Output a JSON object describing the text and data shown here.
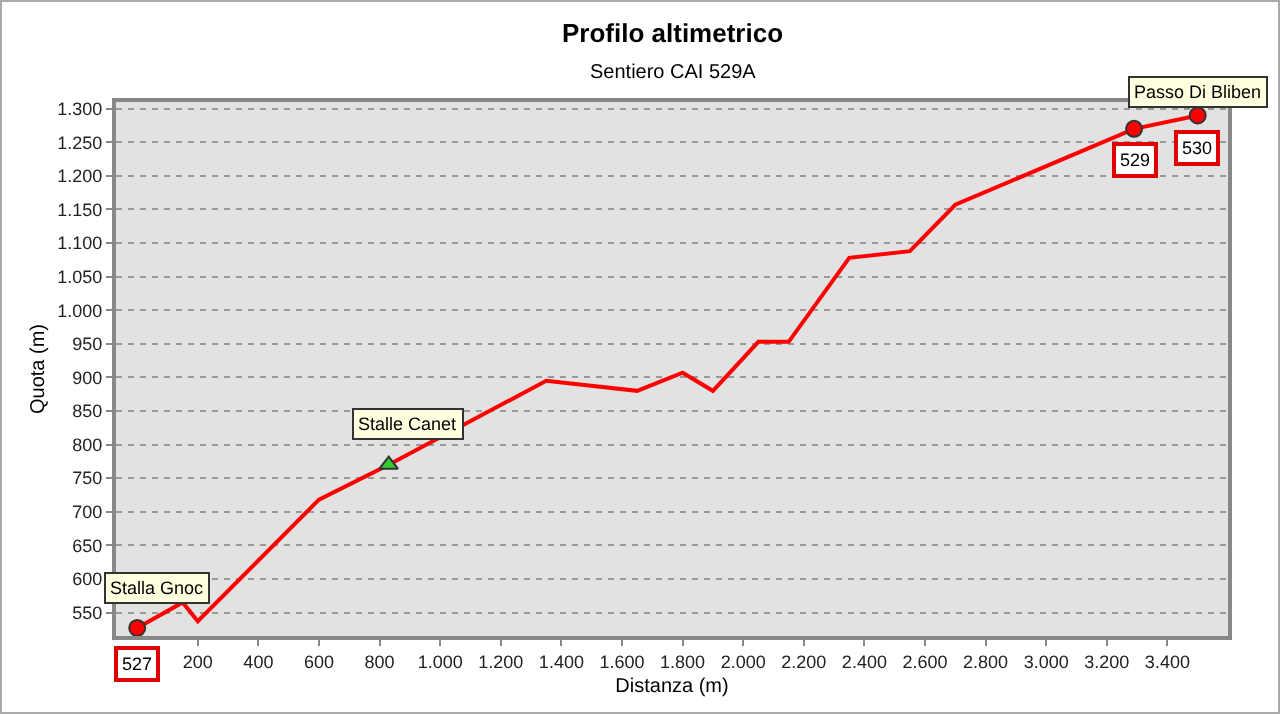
{
  "chart_data": {
    "type": "line",
    "title": "Profilo altimetrico",
    "subtitle": "Sentiero CAI 529A",
    "xlabel": "Distanza (m)",
    "ylabel": "Quota (m)",
    "x": [
      0,
      150,
      200,
      600,
      830,
      1350,
      1650,
      1800,
      1900,
      2050,
      2150,
      2350,
      2550,
      2700,
      3290,
      3500
    ],
    "series": [
      {
        "color": "#ff0000",
        "values": [
          527,
          565,
          537,
          718,
          770,
          895,
          880,
          907,
          880,
          953,
          953,
          1078,
          1088,
          1157,
          1270,
          1290
        ]
      },
      {
        "type": "scatter",
        "color": "#ff0000",
        "marker": "circle",
        "x": [
          0,
          3290,
          3500
        ],
        "values": [
          527,
          1270,
          1290
        ]
      },
      {
        "type": "scatter",
        "color": "#33cc33",
        "marker": "triangle",
        "x": [
          830
        ],
        "values": [
          770
        ]
      }
    ],
    "xlim": [
      -70,
      3600
    ],
    "xticks": [
      200,
      400,
      600,
      800,
      {
        "value": 1000,
        "label": "1.000"
      },
      {
        "value": 1200,
        "label": "1.200"
      },
      {
        "value": 1400,
        "label": "1.400"
      },
      {
        "value": 1600,
        "label": "1.600"
      },
      {
        "value": 1800,
        "label": "1.800"
      },
      {
        "value": 2000,
        "label": "2.000"
      },
      {
        "value": 2200,
        "label": "2.200"
      },
      {
        "value": 2400,
        "label": "2.400"
      },
      {
        "value": 2600,
        "label": "2.600"
      },
      {
        "value": 2800,
        "label": "2.800"
      },
      {
        "value": 3000,
        "label": "3.000"
      },
      {
        "value": 3200,
        "label": "3.200"
      },
      {
        "value": 3400,
        "label": "3.400"
      }
    ],
    "ylim": [
      515,
      1310
    ],
    "yticks": [
      550,
      600,
      650,
      700,
      750,
      800,
      850,
      900,
      950,
      {
        "value": 1000,
        "label": "1.000"
      },
      {
        "value": 1050,
        "label": "1.050"
      },
      {
        "value": 1100,
        "label": "1.100"
      },
      {
        "value": 1150,
        "label": "1.150"
      },
      {
        "value": 1200,
        "label": "1.200"
      },
      {
        "value": 1250,
        "label": "1.250"
      },
      {
        "value": 1300,
        "label": "1.300"
      }
    ],
    "grid": "y",
    "legend": false,
    "line_style": "solid",
    "annotations": [
      {
        "text": "Stalla Gnoc",
        "x": 0,
        "y": 527
      },
      {
        "text": "Stalle Canet",
        "x": 830,
        "y": 770
      },
      {
        "text": "Passo Di Bliben",
        "x": 3500,
        "y": 1290
      },
      {
        "text": "527",
        "x": 0,
        "y": 527
      },
      {
        "text": "529",
        "x": 3290,
        "y": 1270
      },
      {
        "text": "530",
        "x": 3500,
        "y": 1290
      }
    ]
  }
}
